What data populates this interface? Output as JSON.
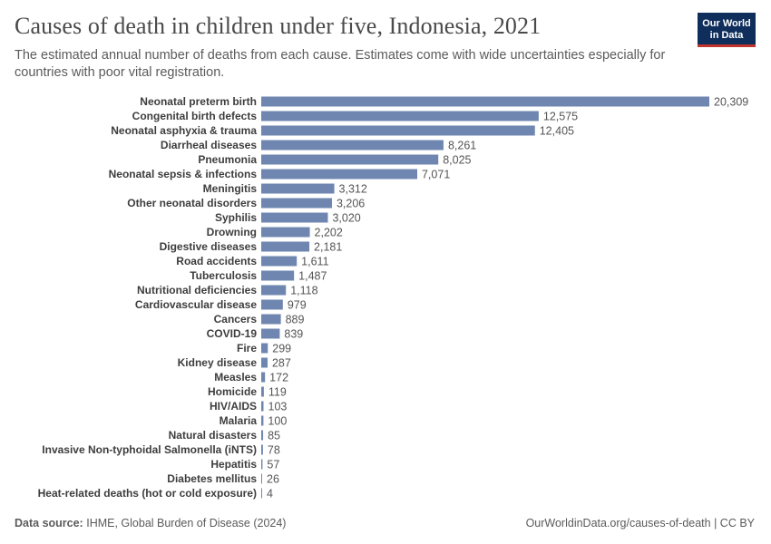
{
  "header": {
    "title": "Causes of death in children under five, Indonesia, 2021",
    "subtitle": "The estimated annual number of deaths from each cause. Estimates come with wide uncertainties especially for countries with poor vital registration.",
    "logo_line1": "Our World",
    "logo_line2": "in Data"
  },
  "footer": {
    "source_label": "Data source:",
    "source_text": "IHME, Global Burden of Disease (2024)",
    "url": "OurWorldinData.org/causes-of-death | CC BY"
  },
  "colors": {
    "bar": "#6f87b0",
    "logo_bg": "#0f2e5c",
    "logo_accent": "#c2352e"
  },
  "chart_data": {
    "type": "bar",
    "orientation": "horizontal",
    "categories": [
      "Neonatal preterm birth",
      "Congenital birth defects",
      "Neonatal asphyxia & trauma",
      "Diarrheal diseases",
      "Pneumonia",
      "Neonatal sepsis & infections",
      "Meningitis",
      "Other neonatal disorders",
      "Syphilis",
      "Drowning",
      "Digestive diseases",
      "Road accidents",
      "Tuberculosis",
      "Nutritional deficiencies",
      "Cardiovascular disease",
      "Cancers",
      "COVID-19",
      "Fire",
      "Kidney disease",
      "Measles",
      "Homicide",
      "HIV/AIDS",
      "Malaria",
      "Natural disasters",
      "Invasive Non-typhoidal Salmonella (iNTS)",
      "Hepatitis",
      "Diabetes mellitus",
      "Heat-related deaths (hot or cold exposure)"
    ],
    "values": [
      20309,
      12575,
      12405,
      8261,
      8025,
      7071,
      3312,
      3206,
      3020,
      2202,
      2181,
      1611,
      1487,
      1118,
      979,
      889,
      839,
      299,
      287,
      172,
      119,
      103,
      100,
      85,
      78,
      57,
      26,
      4
    ],
    "value_labels": [
      "20,309",
      "12,575",
      "12,405",
      "8,261",
      "8,025",
      "7,071",
      "3,312",
      "3,206",
      "3,020",
      "2,202",
      "2,181",
      "1,611",
      "1,487",
      "1,118",
      "979",
      "889",
      "839",
      "299",
      "287",
      "172",
      "119",
      "103",
      "100",
      "85",
      "78",
      "57",
      "26",
      "4"
    ],
    "xlim": [
      0,
      20309
    ],
    "grid": false,
    "legend": "none"
  }
}
